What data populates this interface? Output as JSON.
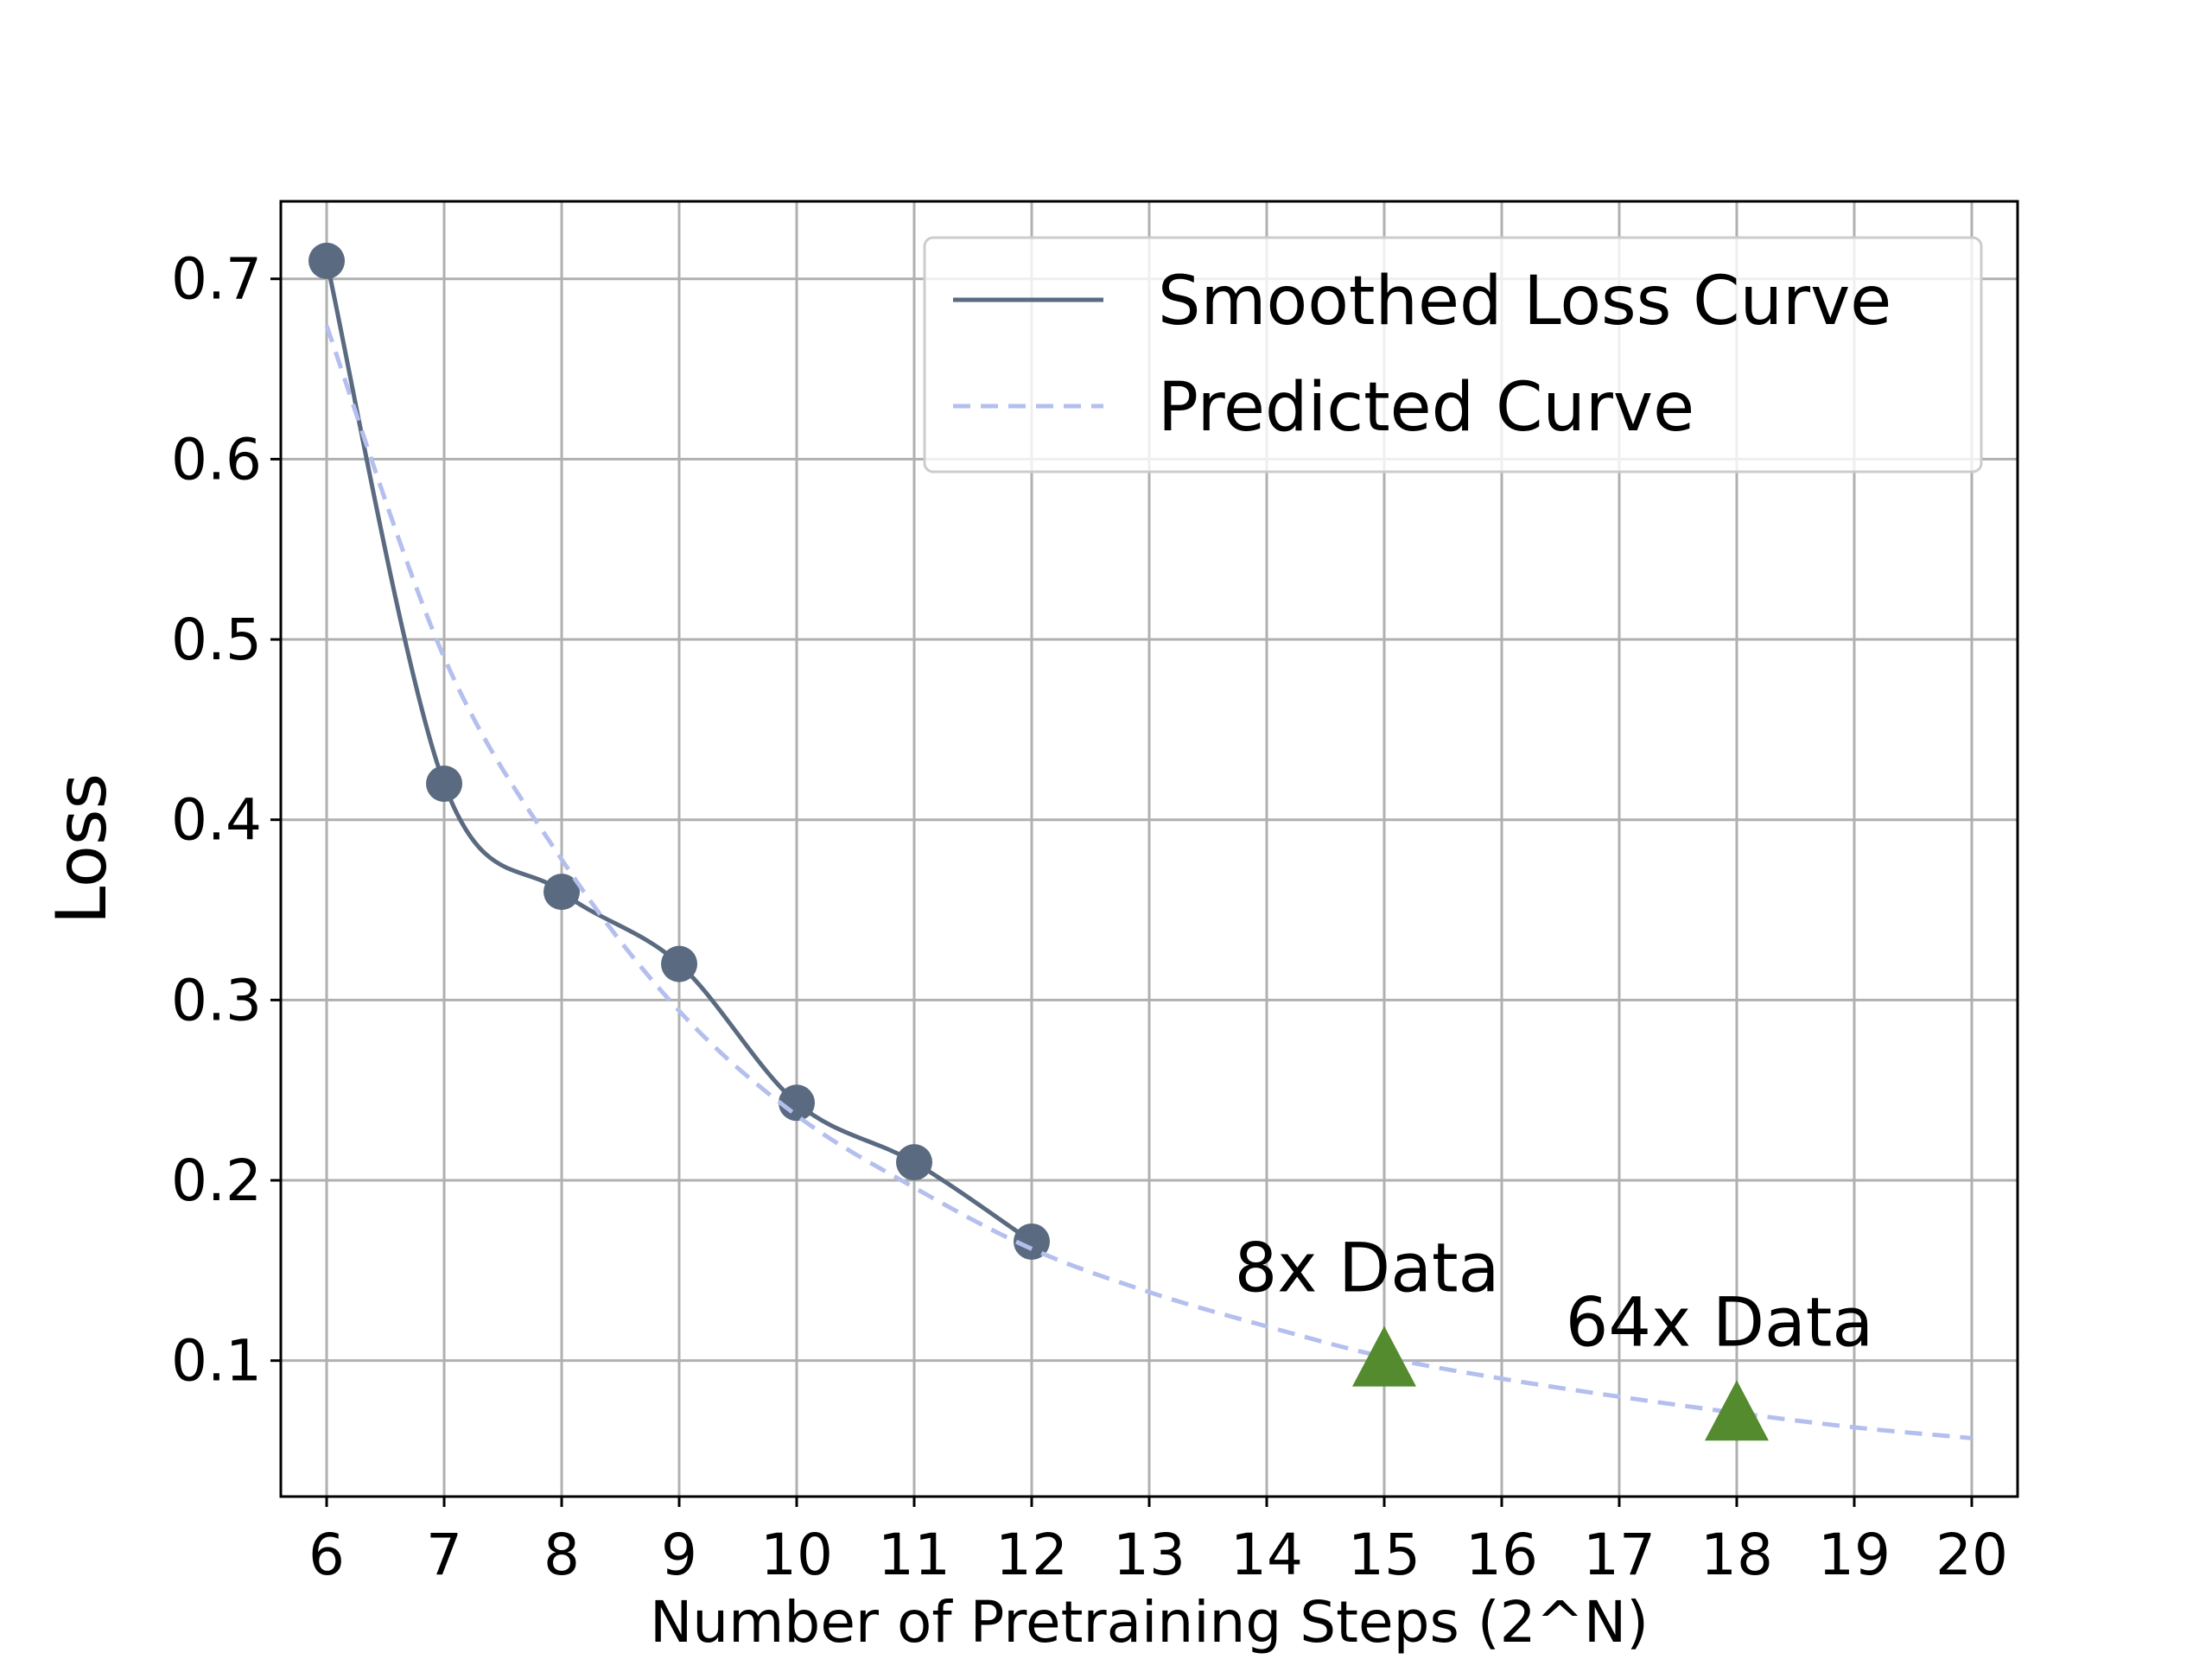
{
  "chart_data": {
    "type": "line",
    "xlabel": "Number of Pretraining Steps (2^N)",
    "ylabel": "Loss",
    "xlim": [
      5.61,
      20.39
    ],
    "ylim": [
      0.0246,
      0.743
    ],
    "xticks": [
      6,
      7,
      8,
      9,
      10,
      11,
      12,
      13,
      14,
      15,
      16,
      17,
      18,
      19,
      20
    ],
    "yticks": [
      0.1,
      0.2,
      0.3,
      0.4,
      0.5,
      0.6,
      0.7
    ],
    "grid": true,
    "legend": "upper right",
    "series": [
      {
        "name": "Smoothed Loss Curve",
        "color": "#5a6a80",
        "style": "solid",
        "marker": "circle",
        "x": [
          6,
          7,
          8,
          9,
          10,
          11,
          12
        ],
        "values": [
          0.71,
          0.42,
          0.36,
          0.32,
          0.243,
          0.21,
          0.166
        ]
      },
      {
        "name": "Predicted Curve",
        "color": "#b4bfee",
        "style": "dashed",
        "x": [
          6,
          7,
          8,
          9,
          10,
          11,
          12,
          13,
          14,
          15,
          16,
          17,
          18,
          19,
          20
        ],
        "values": [
          0.674,
          0.49,
          0.378,
          0.294,
          0.236,
          0.196,
          0.162,
          0.138,
          0.119,
          0.102,
          0.09,
          0.08,
          0.071,
          0.063,
          0.057
        ]
      }
    ],
    "annotations": [
      {
        "text": "8x Data",
        "x": 15,
        "y": 0.1,
        "color": "#548b2e"
      },
      {
        "text": "64x Data",
        "x": 18,
        "y": 0.07,
        "color": "#548b2e"
      }
    ]
  }
}
